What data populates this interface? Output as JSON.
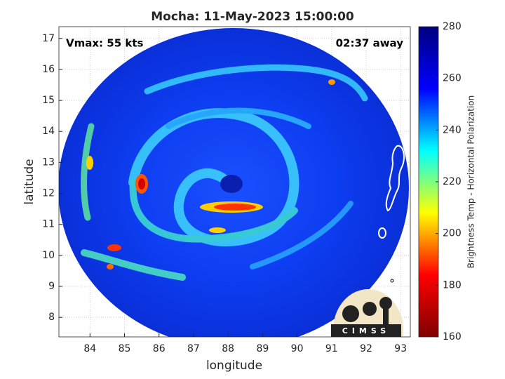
{
  "chart_data": {
    "type": "map",
    "title": "Mocha: 11-May-2023 15:00:00",
    "xlabel": "longitude",
    "ylabel": "latitude",
    "annotations": [
      "Vmax: 55 kts",
      "02:37 away"
    ],
    "xlim": [
      83.1,
      93.28
    ],
    "ylim": [
      7.37,
      17.38
    ],
    "xticks": [
      84,
      85,
      86,
      87,
      88,
      89,
      90,
      91,
      92,
      93
    ],
    "yticks": [
      8,
      9,
      10,
      11,
      12,
      13,
      14,
      15,
      16,
      17
    ],
    "grid": true,
    "colorbar": {
      "label": "Brightness Temp - Horizontal Polarization",
      "lim": [
        160,
        280
      ],
      "ticks": [
        160,
        180,
        200,
        220,
        240,
        260,
        280
      ],
      "colormap": [
        "#7f0000",
        "#ff0000",
        "#ffff00",
        "#00ffff",
        "#0000ff",
        "#00007f"
      ]
    }
  },
  "logo": "CIMSS"
}
